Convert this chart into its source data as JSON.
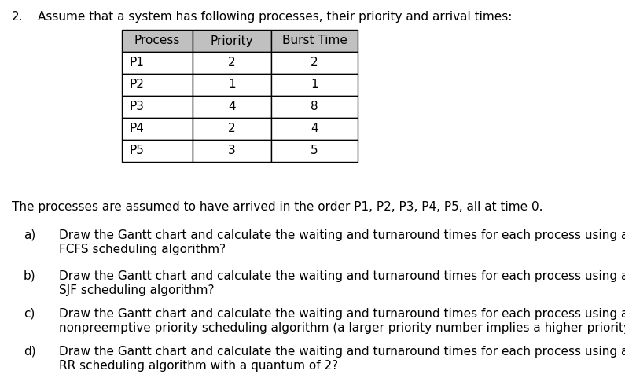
{
  "title_number": "2.",
  "title_text": "Assume that a system has following processes, their priority and arrival times:",
  "table": {
    "headers": [
      "Process",
      "Priority",
      "Burst Time"
    ],
    "rows": [
      [
        "P1",
        "2",
        "2"
      ],
      [
        "P2",
        "1",
        "1"
      ],
      [
        "P3",
        "4",
        "8"
      ],
      [
        "P4",
        "2",
        "4"
      ],
      [
        "P5",
        "3",
        "5"
      ]
    ]
  },
  "arrival_text": "The processes are assumed to have arrived in the order P1, P2, P3, P4, P5, all at time 0.",
  "questions": [
    {
      "label": "a)",
      "line1": "Draw the Gantt chart and calculate the waiting and turnaround times for each process using a",
      "line2": "FCFS scheduling algorithm?"
    },
    {
      "label": "b)",
      "line1": "Draw the Gantt chart and calculate the waiting and turnaround times for each process using a",
      "line2": "SJF scheduling algorithm?"
    },
    {
      "label": "c)",
      "line1": "Draw the Gantt chart and calculate the waiting and turnaround times for each process using a",
      "line2": "nonpreemptive priority scheduling algorithm (a larger priority number implies a higher priority?"
    },
    {
      "label": "d)",
      "line1": "Draw the Gantt chart and calculate the waiting and turnaround times for each process using a",
      "line2": "RR scheduling algorithm with a quantum of 2?"
    }
  ],
  "bg_color": "#ffffff",
  "text_color": "#000000",
  "header_bg": "#c0c0c0",
  "cell_bg": "#ffffff",
  "font_size": 11.0,
  "table_font_size": 11.0
}
